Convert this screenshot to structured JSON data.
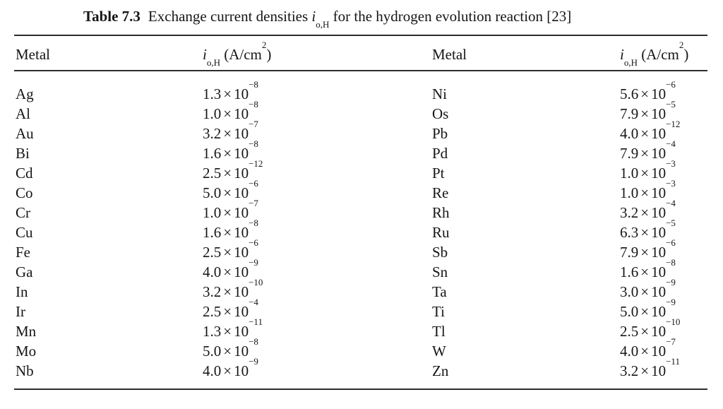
{
  "caption": {
    "label": "Table 7.3",
    "text_before": "Exchange current densities ",
    "symbol_base": "i",
    "symbol_sub": "o,H",
    "text_after": " for the hydrogen evolution reaction [23]"
  },
  "header": {
    "metal_left": "Metal",
    "metal_right": "Metal",
    "symbol_base": "i",
    "symbol_sub": "o,H",
    "unit_pre": " (A/cm",
    "unit_sup": "2",
    "unit_post": ")"
  },
  "format": {
    "times": "×",
    "base": "10"
  },
  "rows": [
    {
      "metal_l": "Ag",
      "coef_l": "1.3",
      "exp_l": "−8",
      "metal_r": "Ni",
      "coef_r": "5.6",
      "exp_r": "−6"
    },
    {
      "metal_l": "Al",
      "coef_l": "1.0",
      "exp_l": "−8",
      "metal_r": "Os",
      "coef_r": "7.9",
      "exp_r": "−5"
    },
    {
      "metal_l": "Au",
      "coef_l": "3.2",
      "exp_l": "−7",
      "metal_r": "Pb",
      "coef_r": "4.0",
      "exp_r": "−12"
    },
    {
      "metal_l": "Bi",
      "coef_l": "1.6",
      "exp_l": "−8",
      "metal_r": "Pd",
      "coef_r": "7.9",
      "exp_r": "−4"
    },
    {
      "metal_l": "Cd",
      "coef_l": "2.5",
      "exp_l": "−12",
      "metal_r": "Pt",
      "coef_r": "1.0",
      "exp_r": "−3"
    },
    {
      "metal_l": "Co",
      "coef_l": "5.0",
      "exp_l": "−6",
      "metal_r": "Re",
      "coef_r": "1.0",
      "exp_r": "−3"
    },
    {
      "metal_l": "Cr",
      "coef_l": "1.0",
      "exp_l": "−7",
      "metal_r": "Rh",
      "coef_r": "3.2",
      "exp_r": "−4"
    },
    {
      "metal_l": "Cu",
      "coef_l": "1.6",
      "exp_l": "−8",
      "metal_r": "Ru",
      "coef_r": "6.3",
      "exp_r": "−5"
    },
    {
      "metal_l": "Fe",
      "coef_l": "2.5",
      "exp_l": "−6",
      "metal_r": "Sb",
      "coef_r": "7.9",
      "exp_r": "−6"
    },
    {
      "metal_l": "Ga",
      "coef_l": "4.0",
      "exp_l": "−9",
      "metal_r": "Sn",
      "coef_r": "1.6",
      "exp_r": "−8"
    },
    {
      "metal_l": "In",
      "coef_l": "3.2",
      "exp_l": "−10",
      "metal_r": "Ta",
      "coef_r": "3.0",
      "exp_r": "−9"
    },
    {
      "metal_l": "Ir",
      "coef_l": "2.5",
      "exp_l": "−4",
      "metal_r": "Ti",
      "coef_r": "5.0",
      "exp_r": "−9"
    },
    {
      "metal_l": "Mn",
      "coef_l": "1.3",
      "exp_l": "−11",
      "metal_r": "Tl",
      "coef_r": "2.5",
      "exp_r": "−10"
    },
    {
      "metal_l": "Mo",
      "coef_l": "5.0",
      "exp_l": "−8",
      "metal_r": "W",
      "coef_r": "4.0",
      "exp_r": "−7"
    },
    {
      "metal_l": "Nb",
      "coef_l": "4.0",
      "exp_l": "−9",
      "metal_r": "Zn",
      "coef_r": "3.2",
      "exp_r": "−11"
    }
  ]
}
